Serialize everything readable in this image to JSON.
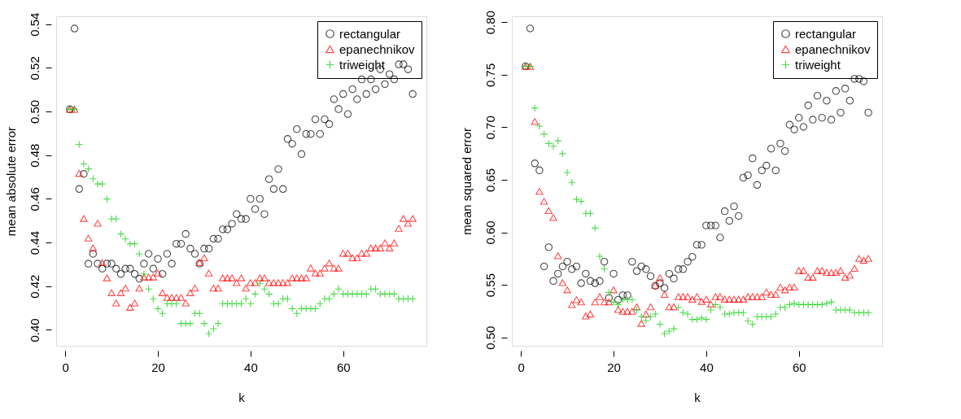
{
  "chart_data": [
    {
      "type": "scatter",
      "xlabel": "k",
      "ylabel": "mean absolute error",
      "legend": "top right",
      "grid": false,
      "xlim": [
        -1.96,
        77.96
      ],
      "xticks": [
        0,
        20,
        40,
        60
      ],
      "ylim": [
        0.3927,
        0.5436
      ],
      "yticks": [
        {
          "value": 0.4,
          "label": "0.40"
        },
        {
          "value": 0.42,
          "label": "0.42"
        },
        {
          "value": 0.44,
          "label": "0.44"
        },
        {
          "value": 0.46,
          "label": "0.46"
        },
        {
          "value": 0.48,
          "label": "0.48"
        },
        {
          "value": 0.5,
          "label": "0.50"
        },
        {
          "value": 0.52,
          "label": "0.52"
        },
        {
          "value": 0.54,
          "label": "0.54"
        }
      ],
      "x": [
        1,
        2,
        3,
        4,
        5,
        6,
        7,
        8,
        9,
        10,
        11,
        12,
        13,
        14,
        15,
        16,
        17,
        18,
        19,
        20,
        21,
        22,
        23,
        24,
        25,
        26,
        27,
        28,
        29,
        30,
        31,
        32,
        33,
        34,
        35,
        36,
        37,
        38,
        39,
        40,
        41,
        42,
        43,
        44,
        45,
        46,
        47,
        48,
        49,
        50,
        51,
        52,
        53,
        54,
        55,
        56,
        57,
        58,
        59,
        60,
        61,
        62,
        63,
        64,
        65,
        66,
        67,
        68,
        69,
        70,
        71,
        72,
        73,
        74,
        75
      ],
      "series": [
        {
          "name": "rectangular",
          "color": "#000000",
          "marker": "circle",
          "values": [
            0.501,
            0.538,
            0.4645,
            0.4714,
            0.4303,
            0.4348,
            0.4303,
            0.428,
            0.4303,
            0.4303,
            0.428,
            0.4256,
            0.428,
            0.428,
            0.4256,
            0.4234,
            0.4303,
            0.4348,
            0.428,
            0.4325,
            0.4256,
            0.4348,
            0.4303,
            0.4394,
            0.4394,
            0.4439,
            0.4372,
            0.4348,
            0.4303,
            0.4372,
            0.4372,
            0.4417,
            0.4417,
            0.446,
            0.446,
            0.4486,
            0.453,
            0.4508,
            0.4508,
            0.46,
            0.4553,
            0.46,
            0.453,
            0.469,
            0.4645,
            0.4736,
            0.4645,
            0.4874,
            0.4852,
            0.4919,
            0.4805,
            0.4897,
            0.4897,
            0.4964,
            0.4897,
            0.4964,
            0.4942,
            0.5056,
            0.5011,
            0.508,
            0.4988,
            0.5102,
            0.5056,
            0.5147,
            0.508,
            0.5147,
            0.5102,
            0.5193,
            0.5125,
            0.5171,
            0.5147,
            0.5216,
            0.5216,
            0.5193,
            0.508
          ]
        },
        {
          "name": "epanechnikov",
          "color": "#ff0000",
          "marker": "triangle",
          "values": [
            0.501,
            0.501,
            0.4717,
            0.451,
            0.442,
            0.4375,
            0.4488,
            0.4308,
            0.4238,
            0.417,
            0.4123,
            0.417,
            0.4191,
            0.4103,
            0.4123,
            0.4191,
            0.4242,
            0.4242,
            0.4242,
            0.426,
            0.417,
            0.4148,
            0.4148,
            0.4148,
            0.4148,
            0.4123,
            0.417,
            0.4191,
            0.4308,
            0.433,
            0.426,
            0.4191,
            0.4191,
            0.4238,
            0.4238,
            0.4238,
            0.4216,
            0.4238,
            0.4191,
            0.4216,
            0.4216,
            0.4238,
            0.4238,
            0.4216,
            0.4216,
            0.4216,
            0.4216,
            0.4216,
            0.4238,
            0.4238,
            0.4238,
            0.4238,
            0.4283,
            0.426,
            0.426,
            0.4283,
            0.4306,
            0.4283,
            0.4283,
            0.4351,
            0.4351,
            0.433,
            0.433,
            0.4351,
            0.4351,
            0.4375,
            0.4375,
            0.4375,
            0.4398,
            0.4375,
            0.4398,
            0.4465,
            0.451,
            0.4488,
            0.451
          ]
        },
        {
          "name": "triweight",
          "color": "#00cd00",
          "marker": "cross",
          "values": [
            0.501,
            0.501,
            0.4849,
            0.476,
            0.4737,
            0.4692,
            0.4668,
            0.4668,
            0.4599,
            0.4508,
            0.4508,
            0.4439,
            0.4416,
            0.4394,
            0.4394,
            0.4348,
            0.4256,
            0.4187,
            0.4142,
            0.4097,
            0.4075,
            0.412,
            0.412,
            0.412,
            0.4029,
            0.4029,
            0.4029,
            0.4075,
            0.4075,
            0.4029,
            0.3983,
            0.4005,
            0.4029,
            0.412,
            0.412,
            0.412,
            0.412,
            0.412,
            0.4142,
            0.412,
            0.4164,
            0.4213,
            0.4187,
            0.4164,
            0.412,
            0.412,
            0.4142,
            0.4142,
            0.4097,
            0.4075,
            0.4097,
            0.4097,
            0.4097,
            0.4097,
            0.412,
            0.4142,
            0.4142,
            0.4164,
            0.4187,
            0.4164,
            0.4164,
            0.4164,
            0.4164,
            0.4164,
            0.4164,
            0.4187,
            0.4187,
            0.4164,
            0.4164,
            0.4164,
            0.4164,
            0.4142,
            0.4142,
            0.4142,
            0.4142
          ]
        }
      ]
    },
    {
      "type": "scatter",
      "xlabel": "k",
      "ylabel": "mean squared error",
      "legend": "top right",
      "grid": false,
      "xlim": [
        -1.96,
        77.96
      ],
      "xticks": [
        0,
        20,
        40,
        60
      ],
      "ylim": [
        0.492,
        0.8056
      ],
      "yticks": [
        {
          "value": 0.5,
          "label": "0.50"
        },
        {
          "value": 0.55,
          "label": "0.55"
        },
        {
          "value": 0.6,
          "label": "0.60"
        },
        {
          "value": 0.65,
          "label": "0.65"
        },
        {
          "value": 0.7,
          "label": "0.70"
        },
        {
          "value": 0.75,
          "label": "0.75"
        },
        {
          "value": 0.8,
          "label": "0.80"
        }
      ],
      "x": [
        1,
        2,
        3,
        4,
        5,
        6,
        7,
        8,
        9,
        10,
        11,
        12,
        13,
        14,
        15,
        16,
        17,
        18,
        19,
        20,
        21,
        22,
        23,
        24,
        25,
        26,
        27,
        28,
        29,
        30,
        31,
        32,
        33,
        34,
        35,
        36,
        37,
        38,
        39,
        40,
        41,
        42,
        43,
        44,
        45,
        46,
        47,
        48,
        49,
        50,
        51,
        52,
        53,
        54,
        55,
        56,
        57,
        58,
        59,
        60,
        61,
        62,
        63,
        64,
        65,
        66,
        67,
        68,
        69,
        70,
        71,
        72,
        73,
        74,
        75
      ],
      "series": [
        {
          "name": "rectangular",
          "color": "#000000",
          "marker": "circle",
          "values": [
            0.758,
            0.794,
            0.6656,
            0.659,
            0.5675,
            0.5858,
            0.5537,
            0.5606,
            0.5675,
            0.572,
            0.5649,
            0.5675,
            0.5516,
            0.5606,
            0.5537,
            0.5516,
            0.5537,
            0.572,
            0.5376,
            0.5606,
            0.5358,
            0.5401,
            0.5401,
            0.572,
            0.5631,
            0.5675,
            0.5649,
            0.5583,
            0.549,
            0.5516,
            0.547,
            0.5606,
            0.556,
            0.5649,
            0.5649,
            0.572,
            0.5767,
            0.5881,
            0.5881,
            0.6065,
            0.6065,
            0.6065,
            0.595,
            0.6201,
            0.6109,
            0.6247,
            0.6155,
            0.652,
            0.6543,
            0.6704,
            0.6451,
            0.6589,
            0.6635,
            0.6796,
            0.6589,
            0.6845,
            0.6773,
            0.7024,
            0.6978,
            0.709,
            0.7003,
            0.7208,
            0.7072,
            0.73,
            0.709,
            0.7253,
            0.7072,
            0.7345,
            0.7139,
            0.7368,
            0.7253,
            0.746,
            0.746,
            0.7437,
            0.7139
          ]
        },
        {
          "name": "epanechnikov",
          "color": "#ff0000",
          "marker": "triangle",
          "values": [
            0.758,
            0.758,
            0.7054,
            0.639,
            0.6295,
            0.6206,
            0.614,
            0.5777,
            0.5521,
            0.5452,
            0.5312,
            0.5358,
            0.5337,
            0.5204,
            0.5222,
            0.5337,
            0.5388,
            0.5337,
            0.5337,
            0.5452,
            0.5266,
            0.5248,
            0.5248,
            0.5248,
            0.5291,
            0.5133,
            0.5222,
            0.5291,
            0.5496,
            0.5567,
            0.5409,
            0.5291,
            0.5291,
            0.5388,
            0.5388,
            0.5388,
            0.5363,
            0.5388,
            0.5342,
            0.5363,
            0.5317,
            0.5388,
            0.5388,
            0.5363,
            0.5363,
            0.5363,
            0.5363,
            0.5363,
            0.5388,
            0.5388,
            0.5388,
            0.5388,
            0.5432,
            0.5409,
            0.5409,
            0.5478,
            0.5452,
            0.5478,
            0.5478,
            0.5636,
            0.5636,
            0.5572,
            0.5572,
            0.5636,
            0.5636,
            0.5618,
            0.5618,
            0.5618,
            0.5636,
            0.5572,
            0.5593,
            0.5657,
            0.5751,
            0.5733,
            0.5751
          ]
        },
        {
          "name": "triweight",
          "color": "#00cd00",
          "marker": "cross",
          "values": [
            0.758,
            0.758,
            0.7182,
            0.7011,
            0.6934,
            0.6845,
            0.6819,
            0.687,
            0.6748,
            0.6569,
            0.6474,
            0.6313,
            0.6295,
            0.618,
            0.618,
            0.604,
            0.5772,
            0.5652,
            0.5427,
            0.5337,
            0.5312,
            0.5358,
            0.5358,
            0.5358,
            0.5261,
            0.5197,
            0.5158,
            0.5197,
            0.5222,
            0.5125,
            0.5036,
            0.5059,
            0.5082,
            0.5286,
            0.5235,
            0.5222,
            0.5171,
            0.5171,
            0.5184,
            0.5171,
            0.5261,
            0.5312,
            0.5286,
            0.5222,
            0.5222,
            0.5235,
            0.5235,
            0.5235,
            0.5158,
            0.5125,
            0.5197,
            0.5197,
            0.5197,
            0.5197,
            0.5222,
            0.5286,
            0.5286,
            0.5312,
            0.5324,
            0.5312,
            0.5312,
            0.5312,
            0.5312,
            0.5312,
            0.5312,
            0.5324,
            0.5337,
            0.5261,
            0.5261,
            0.5261,
            0.5261,
            0.5235,
            0.5235,
            0.5235,
            0.5235
          ]
        }
      ]
    }
  ]
}
